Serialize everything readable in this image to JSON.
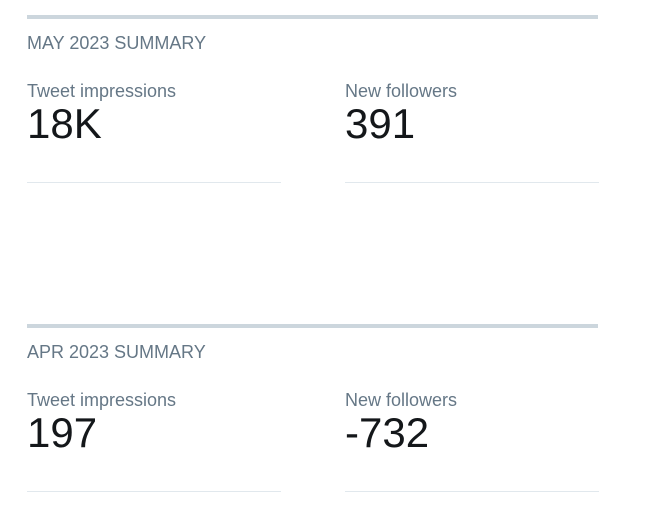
{
  "summaries": [
    {
      "title": "MAY 2023 SUMMARY",
      "metrics": [
        {
          "label": "Tweet impressions",
          "value": "18K"
        },
        {
          "label": "New followers",
          "value": "391"
        }
      ]
    },
    {
      "title": "APR 2023 SUMMARY",
      "metrics": [
        {
          "label": "Tweet impressions",
          "value": "197"
        },
        {
          "label": "New followers",
          "value": "-732"
        }
      ]
    }
  ]
}
